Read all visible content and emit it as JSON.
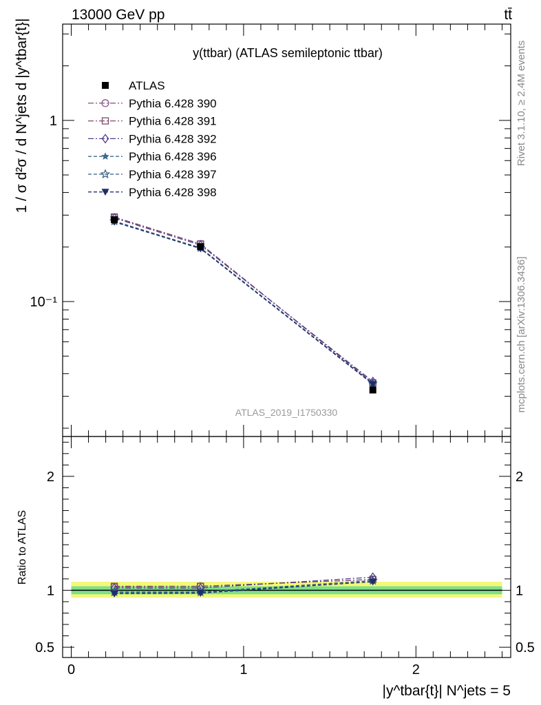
{
  "header": {
    "left_label": "13000 GeV pp",
    "right_label": "tt̄"
  },
  "side_labels": {
    "rivet": "Rivet 3.1.10, ≥ 2.4M events",
    "mcplots": "mcplots.cern.ch [arXiv:1306.3436]"
  },
  "chart_data": [
    {
      "type": "line",
      "title": "y(ttbar) (ATLAS semileptonic ttbar)",
      "watermark": "ATLAS_2019_I1750330",
      "ylabel": "1 / σ d²σ / d N^jets d |y^tbar{t}|",
      "yscale": "log",
      "ylim": [
        0.018,
        3.4
      ],
      "xlim": [
        -0.05,
        2.55
      ],
      "y_ticks": [
        {
          "value": 1,
          "label": "1"
        },
        {
          "value": 0.1,
          "label": "10⁻¹"
        }
      ],
      "legend_position": "top-left",
      "x": [
        0.25,
        0.75,
        1.75
      ],
      "series": [
        {
          "name": "ATLAS",
          "marker": "filled-square",
          "color": "#000000",
          "values": [
            0.283,
            0.201,
            0.0325
          ]
        },
        {
          "name": "Pythia 6.428 390",
          "marker": "open-circle",
          "dash": "dashdot",
          "color": "#8a5a8a",
          "values": [
            0.292,
            0.208,
            0.0355
          ]
        },
        {
          "name": "Pythia 6.428 391",
          "marker": "open-square",
          "dash": "dashdot",
          "color": "#7a4a6a",
          "values": [
            0.293,
            0.208,
            0.0356
          ]
        },
        {
          "name": "Pythia 6.428 392",
          "marker": "open-diamond",
          "dash": "dashdot",
          "color": "#553a8c",
          "values": [
            0.289,
            0.205,
            0.0362
          ]
        },
        {
          "name": "Pythia 6.428 396",
          "marker": "filled-star",
          "dash": "dashed",
          "color": "#3a6a8a",
          "values": [
            0.277,
            0.197,
            0.0352
          ]
        },
        {
          "name": "Pythia 6.428 397",
          "marker": "open-star",
          "dash": "dashed",
          "color": "#355a80",
          "values": [
            0.278,
            0.198,
            0.0353
          ]
        },
        {
          "name": "Pythia 6.428 398",
          "marker": "filled-triangle-down",
          "dash": "dashed",
          "color": "#1f2d6a",
          "values": [
            0.275,
            0.196,
            0.035
          ]
        }
      ]
    },
    {
      "type": "line",
      "ylabel": "Ratio to ATLAS",
      "ylim": [
        0.41,
        2.35
      ],
      "xlim": [
        -0.05,
        2.55
      ],
      "x_ticks": [
        {
          "value": 0,
          "label": "0"
        },
        {
          "value": 1,
          "label": "1"
        },
        {
          "value": 2,
          "label": "2"
        }
      ],
      "y_ticks": [
        {
          "value": 0.5,
          "label": "0.5"
        },
        {
          "value": 1,
          "label": "1"
        },
        {
          "value": 2,
          "label": "2"
        }
      ],
      "xlabel": "|y^tbar{t}| N^jets = 5",
      "uncertainty_band": {
        "x": [
          0.0,
          2.5
        ],
        "inner": [
          0.965,
          1.035
        ],
        "outer": [
          0.935,
          1.075
        ],
        "inner_color": "#7ee089",
        "outer_color": "#f4f779"
      },
      "x": [
        0.25,
        0.75,
        1.75
      ],
      "series": [
        {
          "name": "Pythia 6.428 390",
          "values": [
            1.03,
            1.035,
            1.095
          ]
        },
        {
          "name": "Pythia 6.428 391",
          "values": [
            1.035,
            1.035,
            1.095
          ]
        },
        {
          "name": "Pythia 6.428 392",
          "values": [
            1.02,
            1.02,
            1.115
          ]
        },
        {
          "name": "Pythia 6.428 396",
          "values": [
            0.98,
            0.98,
            1.085
          ]
        },
        {
          "name": "Pythia 6.428 397",
          "values": [
            0.985,
            0.985,
            1.085
          ]
        },
        {
          "name": "Pythia 6.428 398",
          "values": [
            0.97,
            0.975,
            1.075
          ]
        }
      ]
    }
  ]
}
